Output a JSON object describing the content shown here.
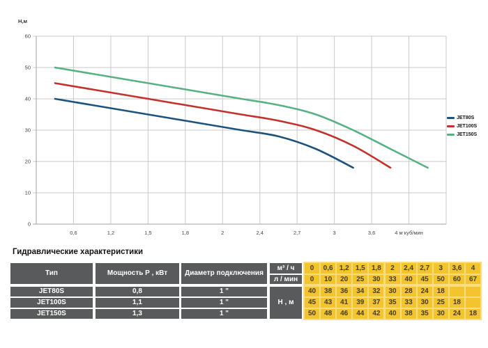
{
  "chart_data": {
    "type": "line",
    "title": "",
    "ylabel": "Н,м",
    "x": [
      0,
      0.6,
      1.2,
      1.5,
      1.8,
      2,
      2.4,
      2.7,
      3,
      3.6,
      4
    ],
    "x_tick_labels": [
      "0,6",
      "1,2",
      "1,5",
      "1,8",
      "2",
      "2,4",
      "2,7",
      "3",
      "3,6",
      "4 м куб/мин"
    ],
    "y_ticks": [
      0,
      10,
      20,
      30,
      40,
      50,
      60
    ],
    "ylim": [
      0,
      60
    ],
    "grid": true,
    "legend_position": "right",
    "axis_note": "x ticks equally spaced (category-like axis)",
    "grid_color": "#c9c9c9",
    "series": [
      {
        "name": "JET80S",
        "color": "#1b537e",
        "values": [
          40,
          38,
          36,
          34,
          32,
          30,
          28,
          24,
          18
        ]
      },
      {
        "name": "JET100S",
        "color": "#c6302b",
        "values": [
          45,
          43,
          41,
          39,
          37,
          35,
          33,
          30,
          25,
          18
        ]
      },
      {
        "name": "JET150S",
        "color": "#58b183",
        "values": [
          50,
          48,
          46,
          44,
          42,
          40,
          38,
          35,
          30,
          24,
          18
        ]
      }
    ]
  },
  "table": {
    "title": "Гидравлические характеристики",
    "headers": {
      "type": "Тип",
      "power": "Мощность Р , кВт",
      "diameter": "Диаметр подключения",
      "flow_m3": "м³ / ч",
      "flow_l": "л / мин",
      "head": "Н , м"
    },
    "flow_m3_values": [
      "0",
      "0,6",
      "1,2",
      "1,5",
      "1,8",
      "2",
      "2,4",
      "2,7",
      "3",
      "3,6",
      "4"
    ],
    "flow_l_values": [
      "0",
      "10",
      "20",
      "25",
      "30",
      "33",
      "40",
      "45",
      "50",
      "60",
      "67"
    ],
    "rows": [
      {
        "type": "JET80S",
        "power": "0,8",
        "diameter": "1 \"",
        "head_values": [
          "40",
          "38",
          "36",
          "34",
          "32",
          "30",
          "28",
          "24",
          "18",
          "",
          ""
        ]
      },
      {
        "type": "JET100S",
        "power": "1,1",
        "diameter": "1 \"",
        "head_values": [
          "45",
          "43",
          "41",
          "39",
          "37",
          "35",
          "33",
          "30",
          "25",
          "18",
          ""
        ]
      },
      {
        "type": "JET150S",
        "power": "1,3",
        "diameter": "1 \"",
        "head_values": [
          "50",
          "48",
          "46",
          "44",
          "42",
          "40",
          "38",
          "35",
          "30",
          "24",
          "18"
        ]
      }
    ],
    "colors": {
      "header_bg": "#595a5c",
      "cell_bg": "#f3c42d",
      "gap_bg": "#fade7d"
    }
  }
}
